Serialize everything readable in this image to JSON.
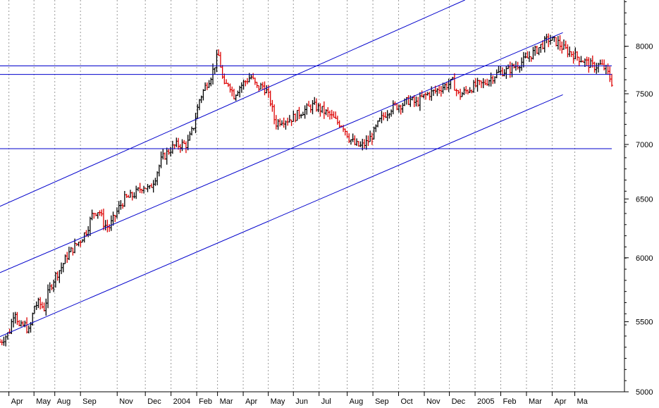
{
  "chart_data": {
    "type": "ohlc",
    "scale": "log",
    "grid": "vertical-dotted",
    "y_ticks": [
      5000,
      5500,
      6000,
      6500,
      7000,
      7500,
      8000
    ],
    "y_tick_labels": [
      "5000",
      "5500",
      "6000",
      "6500",
      "7000",
      "7500",
      "8000"
    ],
    "x_tick_labels": [
      "Apr",
      "May",
      "Aug",
      "Sep",
      "Nov",
      "Dec",
      "2004",
      "Feb",
      "Mar",
      "Apr",
      "May",
      "Jun",
      "Jul",
      "Aug",
      "Sep",
      "Oct",
      "Nov",
      "Dec",
      "2005",
      "Feb",
      "Mar",
      "Apr",
      "Ma"
    ],
    "ylim": [
      5000,
      8520
    ],
    "x_range": [
      0,
      100
    ],
    "x_ticks": [
      1.8,
      5.9,
      9.3,
      13.5,
      19.5,
      24.1,
      28.3,
      32.5,
      35.9,
      40.1,
      44.2,
      48.3,
      52.5,
      57.1,
      61.3,
      65.5,
      69.7,
      73.8,
      78.0,
      82.2,
      86.4,
      90.6,
      94.3
    ],
    "trend_lines": [
      {
        "from": [
          0,
          6435
        ],
        "to": [
          76.0,
          8520
        ]
      },
      {
        "from": [
          0,
          5880
        ],
        "to": [
          92.0,
          8150
        ]
      },
      {
        "from": [
          0,
          5390
        ],
        "to": [
          92.0,
          7490
        ]
      }
    ],
    "horizontal_lines": [
      7790,
      7700,
      6960
    ],
    "price_points": [
      [
        0,
        5350
      ],
      [
        1.5,
        5420
      ],
      [
        2.4,
        5600
      ],
      [
        3.2,
        5450
      ],
      [
        4.0,
        5480
      ],
      [
        4.8,
        5420
      ],
      [
        5.6,
        5620
      ],
      [
        6.4,
        5640
      ],
      [
        7.2,
        5600
      ],
      [
        8.0,
        5740
      ],
      [
        9.0,
        5850
      ],
      [
        10.0,
        5920
      ],
      [
        11.0,
        6020
      ],
      [
        12.0,
        6080
      ],
      [
        13.2,
        6150
      ],
      [
        14.2,
        6230
      ],
      [
        15.2,
        6380
      ],
      [
        16.2,
        6400
      ],
      [
        17.0,
        6280
      ],
      [
        17.8,
        6250
      ],
      [
        18.6,
        6330
      ],
      [
        19.4,
        6420
      ],
      [
        20.4,
        6500
      ],
      [
        21.4,
        6520
      ],
      [
        22.4,
        6560
      ],
      [
        23.4,
        6620
      ],
      [
        24.4,
        6580
      ],
      [
        25.4,
        6700
      ],
      [
        26.4,
        6860
      ],
      [
        27.6,
        6940
      ],
      [
        28.6,
        6990
      ],
      [
        29.6,
        7000
      ],
      [
        30.6,
        7000
      ],
      [
        31.6,
        7160
      ],
      [
        32.6,
        7440
      ],
      [
        33.6,
        7580
      ],
      [
        34.6,
        7700
      ],
      [
        35.4,
        7860
      ],
      [
        35.8,
        7900
      ],
      [
        36.6,
        7560
      ],
      [
        37.4,
        7620
      ],
      [
        38.2,
        7480
      ],
      [
        39.0,
        7560
      ],
      [
        40.0,
        7620
      ],
      [
        41.0,
        7680
      ],
      [
        42.0,
        7560
      ],
      [
        43.0,
        7580
      ],
      [
        43.6,
        7520
      ],
      [
        44.2,
        7420
      ],
      [
        45.0,
        7200
      ],
      [
        46.0,
        7240
      ],
      [
        47.0,
        7240
      ],
      [
        48.0,
        7260
      ],
      [
        49.0,
        7310
      ],
      [
        50.0,
        7340
      ],
      [
        51.0,
        7380
      ],
      [
        52.0,
        7360
      ],
      [
        53.0,
        7320
      ],
      [
        54.0,
        7280
      ],
      [
        55.0,
        7220
      ],
      [
        56.0,
        7190
      ],
      [
        57.0,
        7070
      ],
      [
        58.0,
        7000
      ],
      [
        59.0,
        6980
      ],
      [
        60.0,
        7020
      ],
      [
        61.0,
        7100
      ],
      [
        62.0,
        7220
      ],
      [
        63.0,
        7300
      ],
      [
        64.0,
        7360
      ],
      [
        65.0,
        7380
      ],
      [
        66.0,
        7400
      ],
      [
        67.0,
        7440
      ],
      [
        68.0,
        7400
      ],
      [
        69.0,
        7460
      ],
      [
        70.0,
        7500
      ],
      [
        71.0,
        7520
      ],
      [
        72.0,
        7560
      ],
      [
        73.0,
        7590
      ],
      [
        74.0,
        7620
      ],
      [
        75.0,
        7480
      ],
      [
        76.0,
        7520
      ],
      [
        77.0,
        7560
      ],
      [
        78.0,
        7590
      ],
      [
        79.0,
        7600
      ],
      [
        80.0,
        7650
      ],
      [
        81.0,
        7700
      ],
      [
        82.0,
        7730
      ],
      [
        83.0,
        7740
      ],
      [
        84.0,
        7780
      ],
      [
        85.0,
        7820
      ],
      [
        86.0,
        7860
      ],
      [
        87.0,
        7920
      ],
      [
        88.0,
        7980
      ],
      [
        89.0,
        8040
      ],
      [
        89.6,
        8080
      ],
      [
        90.4,
        8060
      ],
      [
        91.2,
        8040
      ],
      [
        92.0,
        7980
      ],
      [
        93.0,
        7940
      ],
      [
        94.0,
        7900
      ],
      [
        95.0,
        7860
      ],
      [
        96.0,
        7820
      ],
      [
        97.0,
        7780
      ],
      [
        98.0,
        7800
      ],
      [
        99.0,
        7760
      ],
      [
        100.0,
        7620
      ]
    ]
  }
}
